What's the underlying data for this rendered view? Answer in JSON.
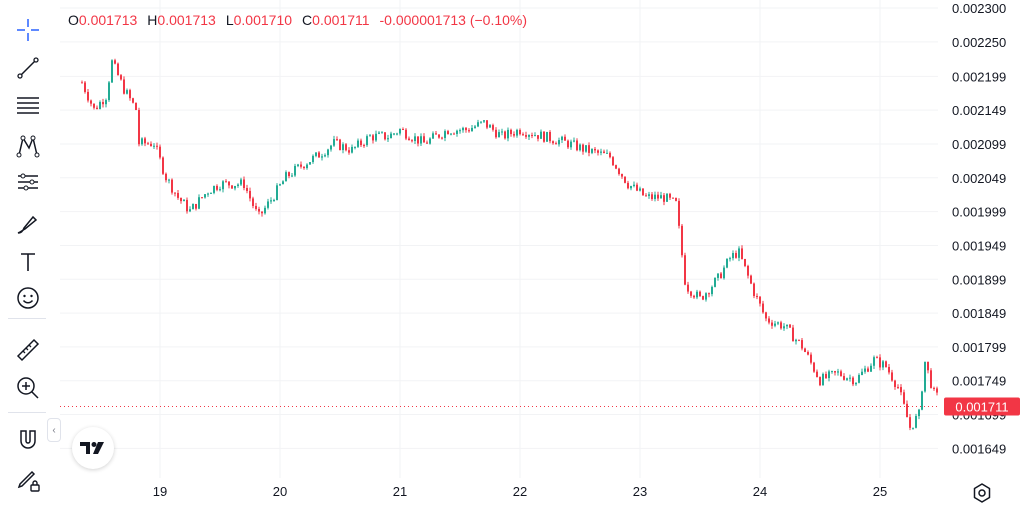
{
  "toolbar": {
    "tools": [
      {
        "name": "crosshair-tool",
        "icon": "crosshair-icon"
      },
      {
        "name": "trend-line-tool",
        "icon": "trend-line-icon"
      },
      {
        "name": "horizontal-lines-tool",
        "icon": "horizontal-lines-icon"
      },
      {
        "name": "pattern-tool",
        "icon": "pattern-icon"
      },
      {
        "name": "prediction-tool",
        "icon": "prediction-icon"
      },
      {
        "name": "brush-tool",
        "icon": "brush-icon"
      },
      {
        "name": "text-tool",
        "icon": "text-icon"
      },
      {
        "name": "emoji-tool",
        "icon": "emoji-icon"
      },
      {
        "name": "ruler-tool",
        "icon": "ruler-icon"
      },
      {
        "name": "zoom-in-tool",
        "icon": "zoom-in-icon"
      },
      {
        "name": "magnet-tool",
        "icon": "magnet-icon"
      },
      {
        "name": "lock-drawings-tool",
        "icon": "pencil-lock-icon"
      }
    ]
  },
  "legend": {
    "open_label": "O",
    "open_value": "0.001713",
    "high_label": "H",
    "high_value": "0.001713",
    "low_label": "L",
    "low_value": "0.001710",
    "close_label": "C",
    "close_value": "0.001711",
    "change": "-0.000001713 (−0.10%)"
  },
  "colors": {
    "up": "#22ab94",
    "down": "#f23645",
    "grid": "#f2f3f5",
    "price_tag_bg": "#f23645",
    "price_tag_text": "#ffffff"
  },
  "chart_data": {
    "type": "candlestick",
    "ylim": [
      0.00162,
      0.0023
    ],
    "y_ticks": [
      "0.002300",
      "0.002250",
      "0.002199",
      "0.002149",
      "0.002099",
      "0.002049",
      "0.001999",
      "0.001949",
      "0.001899",
      "0.001849",
      "0.001799",
      "0.001749",
      "0.001699",
      "0.001649"
    ],
    "x_ticks": [
      "19",
      "20",
      "21",
      "22",
      "23",
      "24",
      "25"
    ],
    "x_range_days": [
      18.35,
      25.9
    ],
    "current_price": 0.001711,
    "current_price_label": "0.001711",
    "anchor_points": [
      [
        18.35,
        0.00219
      ],
      [
        18.45,
        0.00215
      ],
      [
        18.55,
        0.00217
      ],
      [
        18.6,
        0.00222
      ],
      [
        18.7,
        0.00218
      ],
      [
        18.8,
        0.00215
      ],
      [
        18.82,
        0.0021
      ],
      [
        18.95,
        0.0021
      ],
      [
        19.05,
        0.00205
      ],
      [
        19.15,
        0.00202
      ],
      [
        19.25,
        0.002
      ],
      [
        19.4,
        0.00203
      ],
      [
        19.5,
        0.00204
      ],
      [
        19.7,
        0.00204
      ],
      [
        19.82,
        0.00199
      ],
      [
        19.9,
        0.00201
      ],
      [
        20.05,
        0.00205
      ],
      [
        20.2,
        0.00207
      ],
      [
        20.3,
        0.00208
      ],
      [
        20.45,
        0.0021
      ],
      [
        20.6,
        0.00209
      ],
      [
        20.75,
        0.00211
      ],
      [
        20.9,
        0.00211
      ],
      [
        21.0,
        0.00212
      ],
      [
        21.2,
        0.0021
      ],
      [
        21.4,
        0.00212
      ],
      [
        21.55,
        0.00212
      ],
      [
        21.7,
        0.00213
      ],
      [
        21.85,
        0.00211
      ],
      [
        22.0,
        0.00212
      ],
      [
        22.2,
        0.00211
      ],
      [
        22.4,
        0.0021
      ],
      [
        22.55,
        0.00209
      ],
      [
        22.75,
        0.00208
      ],
      [
        22.9,
        0.00204
      ],
      [
        23.05,
        0.00202
      ],
      [
        23.2,
        0.00202
      ],
      [
        23.3,
        0.00201
      ],
      [
        23.38,
        0.00189
      ],
      [
        23.5,
        0.00187
      ],
      [
        23.65,
        0.0019
      ],
      [
        23.75,
        0.00193
      ],
      [
        23.82,
        0.00194
      ],
      [
        23.95,
        0.00188
      ],
      [
        24.05,
        0.00184
      ],
      [
        24.2,
        0.00183
      ],
      [
        24.35,
        0.0018
      ],
      [
        24.5,
        0.00175
      ],
      [
        24.65,
        0.00176
      ],
      [
        24.8,
        0.00175
      ],
      [
        24.95,
        0.00178
      ],
      [
        25.05,
        0.00177
      ],
      [
        25.15,
        0.00174
      ],
      [
        25.25,
        0.00168
      ],
      [
        25.33,
        0.0017
      ],
      [
        25.37,
        0.00178
      ],
      [
        25.45,
        0.00173
      ],
      [
        25.5,
        0.00172
      ],
      [
        25.55,
        0.00171
      ]
    ]
  }
}
